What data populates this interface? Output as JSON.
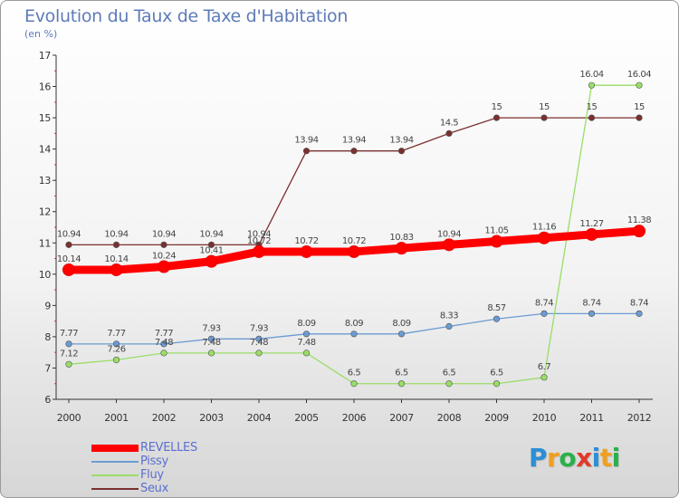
{
  "chart_data": {
    "type": "line",
    "title": "Evolution du Taux de Taxe d'Habitation",
    "unit": "(en %)",
    "x": [
      "2000",
      "2001",
      "2002",
      "2003",
      "2004",
      "2005",
      "2006",
      "2007",
      "2008",
      "2009",
      "2010",
      "2011",
      "2012"
    ],
    "ylim": [
      6,
      17
    ],
    "yticks": [
      "6",
      "7",
      "8",
      "9",
      "10",
      "11",
      "12",
      "13",
      "14",
      "15",
      "16",
      "17"
    ],
    "grid": false,
    "legend_position": "bottom-left",
    "series": [
      {
        "name": "REVELLES",
        "color": "#ff0000",
        "values": [
          10.14,
          10.14,
          10.24,
          10.41,
          10.72,
          10.72,
          10.72,
          10.83,
          10.94,
          11.05,
          11.16,
          11.27,
          11.38
        ],
        "labels": [
          "10.14",
          "10.14",
          "10.24",
          "10.41",
          "10.72",
          "10.72",
          "10.72",
          "10.83",
          "10.94",
          "11.05",
          "11.16",
          "11.27",
          "11.38"
        ]
      },
      {
        "name": "Pissy",
        "color": "#6b9bd2",
        "values": [
          7.77,
          7.77,
          7.77,
          7.93,
          7.93,
          8.09,
          8.09,
          8.09,
          8.33,
          8.57,
          8.74,
          8.74,
          8.74
        ],
        "labels": [
          "7.77",
          "7.77",
          "7.77",
          "7.93",
          "7.93",
          "8.09",
          "8.09",
          "8.09",
          "8.33",
          "8.57",
          "8.74",
          "8.74",
          "8.74"
        ]
      },
      {
        "name": "Fluy",
        "color": "#99dd66",
        "values": [
          7.12,
          7.26,
          7.48,
          7.48,
          7.48,
          7.48,
          6.5,
          6.5,
          6.5,
          6.5,
          6.7,
          16.04,
          16.04
        ],
        "labels": [
          "7.12",
          "7.26",
          "7.48",
          "7.48",
          "7.48",
          "7.48",
          "6.5",
          "6.5",
          "6.5",
          "6.5",
          "6.7",
          "16.04",
          "16.04"
        ]
      },
      {
        "name": "Seux",
        "color": "#7a3030",
        "values": [
          10.94,
          10.94,
          10.94,
          10.94,
          10.94,
          13.94,
          13.94,
          13.94,
          14.5,
          15,
          15,
          15,
          15
        ],
        "labels": [
          "10.94",
          "10.94",
          "10.94",
          "10.94",
          "10.94",
          "13.94",
          "13.94",
          "13.94",
          "14.5",
          "15",
          "15",
          "15",
          "15"
        ]
      }
    ]
  },
  "brand": {
    "letters": [
      "P",
      "r",
      "o",
      "x",
      "i",
      "t",
      "i"
    ],
    "colors": [
      "#2a8fd6",
      "#f0a020",
      "#2ab04a",
      "#e03a2a",
      "#2a8fd6",
      "#f0a020",
      "#2ab04a"
    ]
  }
}
